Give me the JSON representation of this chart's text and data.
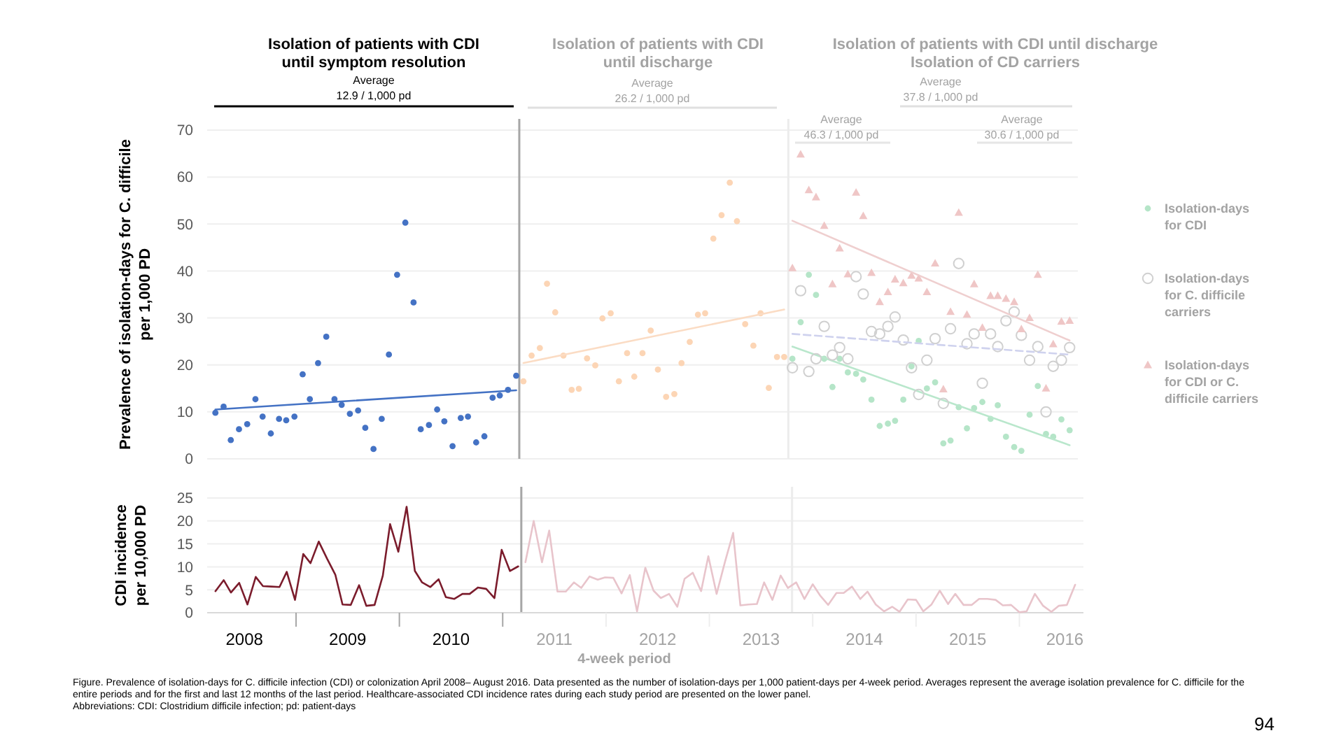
{
  "chart_data": [
    {
      "type": "scatter",
      "ylabel": "Prevalence of isolation-days  for C. difficile\nper 1,000 PD",
      "xlim": [
        2008.14,
        2016.62
      ],
      "ylim": [
        0,
        70
      ],
      "yticks": [
        0,
        10,
        20,
        30,
        40,
        50,
        60,
        70
      ],
      "grid": "y",
      "tick_labels": "y",
      "legend": "right",
      "series": [
        {
          "color": "#4472c4",
          "marker": "circle",
          "x": [
            2008.22,
            2008.3,
            2008.37,
            2008.45,
            2008.53,
            2008.61,
            2008.68,
            2008.76,
            2008.84,
            2008.91,
            2008.99,
            2009.07,
            2009.14,
            2009.22,
            2009.3,
            2009.38,
            2009.45,
            2009.53,
            2009.61,
            2009.68,
            2009.76,
            2009.84,
            2009.91,
            2009.99,
            2010.07,
            2010.15,
            2010.22,
            2010.3,
            2010.38,
            2010.45,
            2010.53,
            2010.61,
            2010.68,
            2010.76,
            2010.84,
            2010.92,
            2010.99,
            2011.07,
            2011.15
          ],
          "values": [
            9.8,
            11.1,
            4.0,
            6.3,
            7.4,
            12.7,
            9.0,
            5.4,
            8.5,
            8.2,
            9.0,
            18.0,
            12.7,
            20.4,
            26.0,
            12.7,
            11.5,
            9.6,
            10.3,
            6.6,
            2.1,
            8.5,
            22.2,
            39.2,
            50.3,
            33.3,
            6.3,
            7.2,
            10.5,
            8.0,
            2.7,
            8.7,
            9.0,
            3.5,
            4.8,
            13.0,
            13.5,
            14.7,
            17.7
          ]
        },
        {
          "type": "line",
          "color": "#4472c4",
          "marker": "none",
          "x": [
            2008.22,
            2011.15
          ],
          "values": [
            10.5,
            14.6
          ]
        },
        {
          "color": "#fcd5b5",
          "marker": "circle",
          "x": [
            2011.22,
            2011.3,
            2011.38,
            2011.45,
            2011.53,
            2011.61,
            2011.69,
            2011.76,
            2011.84,
            2011.92,
            2011.99,
            2012.07,
            2012.15,
            2012.23,
            2012.3,
            2012.38,
            2012.46,
            2012.53,
            2012.61,
            2012.69,
            2012.76,
            2012.84,
            2012.92,
            2012.99,
            2013.07,
            2013.15,
            2013.23,
            2013.3,
            2013.38,
            2013.46,
            2013.53,
            2013.61,
            2013.69,
            2013.76
          ],
          "values": [
            16.5,
            22.0,
            23.6,
            37.3,
            31.2,
            22.0,
            14.7,
            14.9,
            21.4,
            19.9,
            29.9,
            31.0,
            16.5,
            22.5,
            17.5,
            22.5,
            27.3,
            19.0,
            13.2,
            13.8,
            20.4,
            24.9,
            30.7,
            31.0,
            46.9,
            51.9,
            58.8,
            50.6,
            28.7,
            24.1,
            31.0,
            15.1,
            21.7,
            21.7
          ]
        },
        {
          "type": "line",
          "color": "#fbdcc4",
          "marker": "none",
          "x": [
            2011.22,
            2013.76
          ],
          "values": [
            20.4,
            31.8
          ]
        },
        {
          "name": "Isolation-days for CDI",
          "color": "#b5e5c8",
          "marker": "circle",
          "x": [
            2013.84,
            2013.92,
            2014.0,
            2014.07,
            2014.15,
            2014.23,
            2014.3,
            2014.38,
            2014.46,
            2014.53,
            2014.61,
            2014.69,
            2014.77,
            2014.84,
            2014.92,
            2015.0,
            2015.07,
            2015.15,
            2015.23,
            2015.31,
            2015.38,
            2015.46,
            2015.54,
            2015.61,
            2015.69,
            2015.77,
            2015.84,
            2015.92,
            2016.0,
            2016.07,
            2016.15,
            2016.23,
            2016.31,
            2016.38,
            2016.46,
            2016.54
          ],
          "values": [
            21.3,
            29.1,
            39.2,
            34.9,
            21.3,
            15.3,
            21.3,
            18.4,
            18.1,
            16.9,
            12.6,
            7.0,
            7.5,
            8.1,
            12.6,
            19.7,
            25.1,
            15.0,
            16.3,
            3.3,
            3.9,
            11.0,
            6.5,
            10.8,
            12.1,
            8.5,
            11.4,
            4.7,
            2.5,
            1.7,
            9.4,
            15.5,
            5.3,
            4.7,
            8.4,
            6.1
          ]
        },
        {
          "type": "line",
          "color": "#b9e7cc",
          "marker": "none",
          "x": [
            2013.84,
            2016.54
          ],
          "values": [
            23.9,
            2.9
          ]
        },
        {
          "name": "Isolation-days for C. difficile carriers",
          "color": "#d0d0d0",
          "marker": "open-circle",
          "x": [
            2013.84,
            2013.92,
            2014.0,
            2014.07,
            2014.15,
            2014.23,
            2014.3,
            2014.38,
            2014.46,
            2014.53,
            2014.61,
            2014.69,
            2014.77,
            2014.84,
            2014.92,
            2015.0,
            2015.07,
            2015.15,
            2015.23,
            2015.31,
            2015.38,
            2015.46,
            2015.54,
            2015.61,
            2015.69,
            2015.77,
            2015.84,
            2015.92,
            2016.0,
            2016.07,
            2016.15,
            2016.23,
            2016.31,
            2016.38,
            2016.46,
            2016.54
          ],
          "values": [
            19.4,
            35.8,
            18.6,
            21.3,
            28.2,
            22.1,
            23.7,
            21.3,
            38.8,
            35.1,
            27.1,
            26.6,
            28.2,
            30.2,
            25.3,
            19.4,
            13.7,
            21.0,
            25.6,
            11.8,
            27.7,
            41.6,
            24.5,
            26.6,
            16.1,
            26.6,
            23.9,
            29.4,
            31.3,
            26.3,
            21.0,
            23.9,
            10.0,
            19.7,
            21.0,
            23.7
          ]
        },
        {
          "type": "line",
          "color": "#cfd2ee",
          "marker": "none",
          "line_style": "dashed",
          "x": [
            2013.84,
            2016.54
          ],
          "values": [
            26.6,
            22.2
          ]
        },
        {
          "name": "Isolation-days for CDI or C. difficile carriers",
          "color": "#efc6c6",
          "marker": "triangle",
          "x": [
            2013.84,
            2013.92,
            2014.0,
            2014.07,
            2014.15,
            2014.23,
            2014.3,
            2014.38,
            2014.46,
            2014.53,
            2014.61,
            2014.69,
            2014.77,
            2014.84,
            2014.92,
            2015.0,
            2015.07,
            2015.15,
            2015.23,
            2015.31,
            2015.38,
            2015.46,
            2015.54,
            2015.61,
            2015.69,
            2015.77,
            2015.84,
            2015.92,
            2016.0,
            2016.07,
            2016.15,
            2016.23,
            2016.31,
            2016.38,
            2016.46,
            2016.54
          ],
          "values": [
            40.6,
            64.8,
            57.2,
            55.7,
            49.6,
            37.2,
            44.8,
            39.3,
            56.7,
            51.7,
            39.6,
            33.4,
            35.5,
            38.2,
            37.4,
            39.0,
            38.4,
            35.5,
            41.6,
            14.8,
            31.3,
            52.4,
            30.7,
            37.2,
            27.9,
            34.7,
            34.7,
            34.1,
            33.4,
            27.6,
            30.0,
            39.2,
            15.0,
            24.4,
            29.2,
            29.4
          ]
        },
        {
          "type": "line",
          "color": "#efcfcf",
          "marker": "none",
          "x": [
            2013.84,
            2016.54
          ],
          "values": [
            50.7,
            25.2
          ]
        }
      ],
      "ref_lines": [
        {
          "axis": "x",
          "value": 2011.18,
          "color": "#a6a6a6"
        },
        {
          "axis": "x",
          "value": 2013.8,
          "color": "#ececec"
        }
      ],
      "annotations": [
        "Isolation of patients with CDI",
        "until symptom resolution",
        "Average",
        "12.9 / 1,000 pd",
        "Isolation of patients with CDI",
        "until discharge",
        "Average",
        "26.2 / 1,000 pd",
        "Isolation of  patients with CDI until discharge",
        "Isolation of CD carriers",
        "Average",
        "37.8 / 1,000 pd",
        "Average",
        "46.3 / 1,000 pd",
        "Average",
        "30.6 / 1,000 pd"
      ]
    },
    {
      "type": "line",
      "xlabel": "4-week period",
      "ylabel": "CDI incidence\nper 10,000 PD",
      "xlim": [
        2008.14,
        2016.62
      ],
      "ylim": [
        0,
        25
      ],
      "yticks": [
        0,
        5,
        10,
        15,
        20,
        25
      ],
      "xticks": [
        {
          "value": 2008.5,
          "label": "2008"
        },
        {
          "value": 2009,
          "label": null
        },
        {
          "value": 2009.5,
          "label": "2009"
        },
        {
          "value": 2010,
          "label": null
        },
        {
          "value": 2010.5,
          "label": "2010"
        },
        {
          "value": 2011,
          "label": null
        },
        {
          "value": 2011.5,
          "label": "2011"
        },
        {
          "value": 2012,
          "label": null
        },
        {
          "value": 2012.5,
          "label": "2012"
        },
        {
          "value": 2013,
          "label": null
        },
        {
          "value": 2013.5,
          "label": "2013"
        },
        {
          "value": 2014,
          "label": null
        },
        {
          "value": 2014.5,
          "label": "2014"
        },
        {
          "value": 2015,
          "label": null
        },
        {
          "value": 2015.5,
          "label": "2015"
        },
        {
          "value": 2016,
          "label": null
        },
        {
          "value": 2016.44,
          "label": "2016"
        }
      ],
      "grid": "y",
      "series": [
        {
          "color": "#7b1c2c",
          "x": [
            2008.22,
            2008.3,
            2008.37,
            2008.45,
            2008.53,
            2008.61,
            2008.68,
            2008.76,
            2008.84,
            2008.91,
            2008.99,
            2009.07,
            2009.14,
            2009.22,
            2009.3,
            2009.38,
            2009.45,
            2009.53,
            2009.61,
            2009.68,
            2009.76,
            2009.84,
            2009.91,
            2009.99,
            2010.07,
            2010.15,
            2010.22,
            2010.3,
            2010.38,
            2010.45,
            2010.53,
            2010.61,
            2010.68,
            2010.76,
            2010.84,
            2010.92,
            2010.99,
            2011.07,
            2011.15
          ],
          "values": [
            4.7,
            7.1,
            4.4,
            6.5,
            1.8,
            7.8,
            5.8,
            5.7,
            5.6,
            8.9,
            2.8,
            12.8,
            10.8,
            15.5,
            11.8,
            8.3,
            1.8,
            1.7,
            6.0,
            1.5,
            1.7,
            8.1,
            19.3,
            13.3,
            23.1,
            9.1,
            6.6,
            5.6,
            7.3,
            3.4,
            3.0,
            4.1,
            4.1,
            5.5,
            5.2,
            3.2,
            13.7,
            9.1,
            10.1
          ]
        },
        {
          "color": "#e8c4cb",
          "x": [
            2011.22,
            2011.3,
            2011.38,
            2011.45,
            2011.53,
            2011.61,
            2011.69,
            2011.76,
            2011.84,
            2011.92,
            2011.99,
            2012.07,
            2012.15,
            2012.23,
            2012.3,
            2012.38,
            2012.46,
            2012.53,
            2012.61,
            2012.69,
            2012.76,
            2012.84,
            2012.92,
            2012.99,
            2013.07,
            2013.15,
            2013.23,
            2013.3,
            2013.38,
            2013.46,
            2013.53,
            2013.61,
            2013.69,
            2013.76,
            2013.84,
            2013.92,
            2014.0,
            2014.07,
            2014.15,
            2014.23,
            2014.3,
            2014.38,
            2014.46,
            2014.53,
            2014.61,
            2014.69,
            2014.77,
            2014.84,
            2014.92,
            2015.0,
            2015.07,
            2015.15,
            2015.23,
            2015.31,
            2015.38,
            2015.46,
            2015.54,
            2015.61,
            2015.69,
            2015.77,
            2015.84,
            2015.92,
            2016.0,
            2016.07,
            2016.15,
            2016.23,
            2016.31,
            2016.38,
            2016.46,
            2016.54
          ],
          "values": [
            11.0,
            20.0,
            11.0,
            17.9,
            4.6,
            4.6,
            6.6,
            5.4,
            7.9,
            7.2,
            7.7,
            7.6,
            4.2,
            8.2,
            0.3,
            9.8,
            4.8,
            3.2,
            4.1,
            1.3,
            7.4,
            8.7,
            4.7,
            12.3,
            4.1,
            11.0,
            17.4,
            1.6,
            1.8,
            1.9,
            6.6,
            2.8,
            8.1,
            5.4,
            6.6,
            3.0,
            6.2,
            3.8,
            1.7,
            4.3,
            4.3,
            5.7,
            3.0,
            4.6,
            1.8,
            0.3,
            1.3,
            0.2,
            2.9,
            2.8,
            0.3,
            1.8,
            4.8,
            1.9,
            4.1,
            1.7,
            1.7,
            3.0,
            3.0,
            2.8,
            1.6,
            1.7,
            0.1,
            0.3,
            4.1,
            1.5,
            0.2,
            1.5,
            1.7,
            6.1
          ]
        }
      ],
      "ref_lines": [
        {
          "axis": "x",
          "value": 2011.18,
          "color": "#a6a6a6"
        },
        {
          "axis": "x",
          "value": 2013.8,
          "color": "#ececec"
        }
      ],
      "annotations": [
        "Figure. Prevalence of isolation-days for C. difficile infection (CDI) or colonization April 2008– August 2016. Data presented as the number of isolation-days per 1,000 patient-days per 4-week period. Averages represent the average isolation prevalence for C. difficile for the entire periods and for the first and last 12 months of the last period. Healthcare-associated CDI incidence rates during each study period are presented on the lower panel.",
        "Abbreviations: CDI: Clostridium difficile infection; pd: patient-days",
        "94"
      ]
    }
  ]
}
